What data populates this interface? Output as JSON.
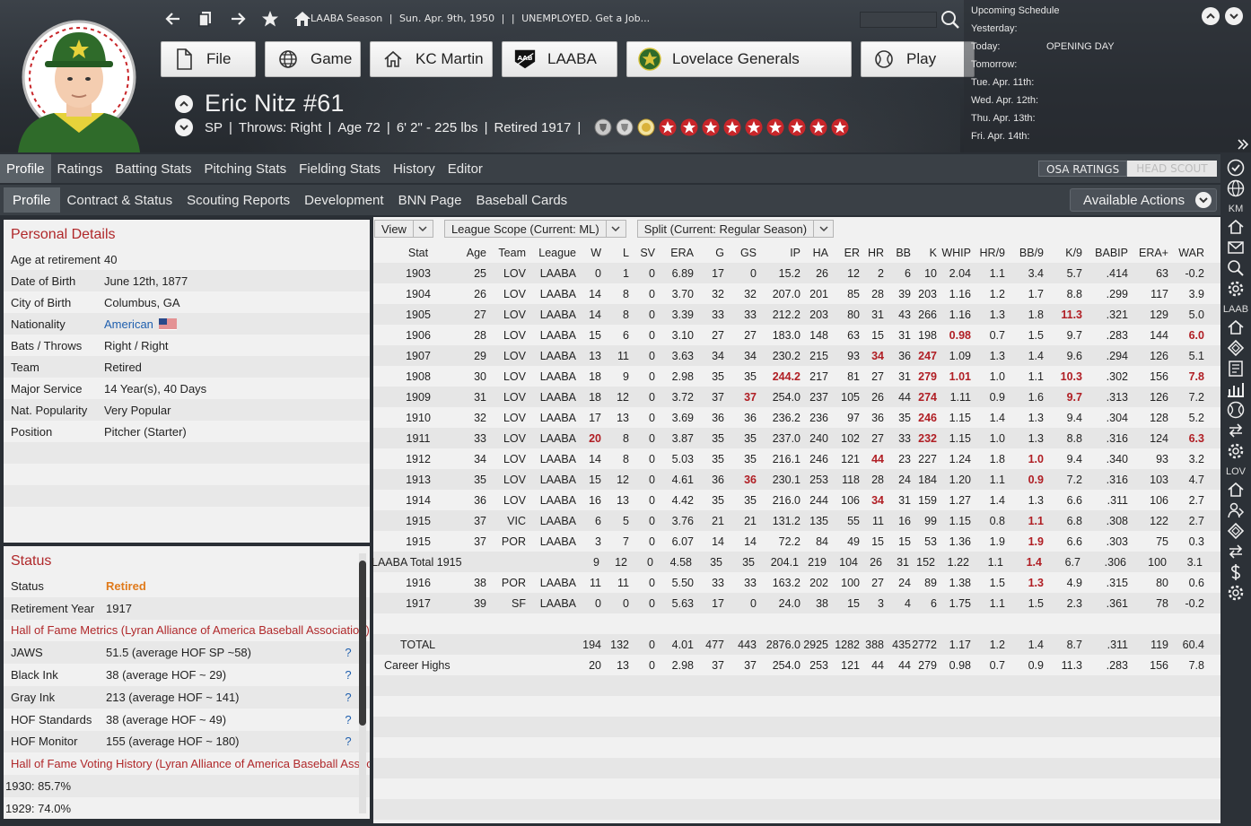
{
  "header": {
    "season": [
      "LAABA Season",
      "|",
      "Sun. Apr. 9th, 1950",
      "|",
      "|",
      "UNEMPLOYED. Get a Job..."
    ],
    "menu": [
      "File",
      "Game",
      "KC Martin",
      "LAABA",
      "Lovelace Generals",
      "Play"
    ],
    "player_name": "Eric Nitz  #61",
    "player_info": [
      "SP",
      "Throws: Right",
      "Age 72",
      "6' 2\" - 225 lbs",
      "Retired 1917"
    ]
  },
  "schedule": {
    "title": "Upcoming Schedule",
    "rows": [
      {
        "day": "Yesterday:",
        "game": ""
      },
      {
        "day": "Today:",
        "game": "OPENING DAY"
      },
      {
        "day": "Tomorrow:",
        "game": ""
      },
      {
        "day": "Tue. Apr. 11th:",
        "game": ""
      },
      {
        "day": "Wed. Apr. 12th:",
        "game": ""
      },
      {
        "day": "Thu. Apr. 13th:",
        "game": ""
      },
      {
        "day": "Fri. Apr. 14th:",
        "game": ""
      }
    ]
  },
  "tabs_main": [
    "Profile",
    "Ratings",
    "Batting Stats",
    "Pitching Stats",
    "Fielding Stats",
    "History",
    "Editor"
  ],
  "tabs_sub": [
    "Profile",
    "Contract & Status",
    "Scouting Reports",
    "Development",
    "BNN Page",
    "Baseball Cards"
  ],
  "osa": {
    "osa_label": "OSA RATINGS",
    "head_scout_label": "HEAD SCOUT"
  },
  "available_actions": "Available Actions",
  "sidebar": {
    "labels": [
      "KM",
      "LAAB",
      "LOV"
    ]
  },
  "personal": {
    "title": "Personal Details",
    "rows": [
      {
        "k": "Age at retirement",
        "v": "40"
      },
      {
        "k": "Date of Birth",
        "v": "June 12th, 1877"
      },
      {
        "k": "City of Birth",
        "v": "Columbus, GA"
      },
      {
        "k": "Nationality",
        "v": "American"
      },
      {
        "k": "Bats / Throws",
        "v": "Right / Right"
      },
      {
        "k": "Team",
        "v": "Retired"
      },
      {
        "k": "Major Service",
        "v": "14 Year(s), 40 Days"
      },
      {
        "k": "Nat. Popularity",
        "v": "Very Popular"
      },
      {
        "k": "Position",
        "v": "Pitcher (Starter)"
      },
      {
        "k": "",
        "v": ""
      },
      {
        "k": "",
        "v": ""
      },
      {
        "k": "",
        "v": ""
      },
      {
        "k": "",
        "v": ""
      }
    ]
  },
  "status": {
    "title": "Status",
    "status_label": "Status",
    "status_value": "Retired",
    "ret_label": "Retirement Year",
    "ret_value": "1917",
    "hof_metrics_title": "Hall of Fame Metrics (Lyran Alliance of America Baseball Association)",
    "metrics": [
      {
        "k": "JAWS",
        "v": "51.5 (average HOF SP ~58)"
      },
      {
        "k": "Black Ink",
        "v": "38 (average HOF ~ 29)"
      },
      {
        "k": "Gray Ink",
        "v": "213 (average HOF ~ 141)"
      },
      {
        "k": "HOF Standards",
        "v": "38 (average HOF ~ 49)"
      },
      {
        "k": "HOF Monitor",
        "v": "155 (average HOF ~ 180)"
      }
    ],
    "q": "?",
    "hof_voting_title": "Hall of Fame Voting History (Lyran Alliance of America Baseball Association)",
    "votes": [
      "1930: 85.7%",
      "1929: 74.0%"
    ]
  },
  "stats": {
    "filters": [
      "View",
      "League Scope  (Current: ML)",
      "Split  (Current: Regular Season)"
    ],
    "columns": [
      "Stat",
      "Age",
      "Team",
      "League",
      "W",
      "L",
      "SV",
      "ERA",
      "G",
      "GS",
      "IP",
      "HA",
      "ER",
      "HR",
      "BB",
      "K",
      "WHIP",
      "HR/9",
      "BB/9",
      "K/9",
      "BABIP",
      "ERA+",
      "WAR"
    ],
    "rows": [
      {
        "c": [
          "1903",
          "25",
          "LOV",
          "LAABA",
          "0",
          "1",
          "0",
          "6.89",
          "17",
          "0",
          "15.2",
          "26",
          "12",
          "2",
          "6",
          "10",
          "2.04",
          "1.1",
          "3.4",
          "5.7",
          ".414",
          "63",
          "-0.2"
        ],
        "r": []
      },
      {
        "c": [
          "1904",
          "26",
          "LOV",
          "LAABA",
          "14",
          "8",
          "0",
          "3.70",
          "32",
          "32",
          "207.0",
          "201",
          "85",
          "28",
          "39",
          "203",
          "1.16",
          "1.2",
          "1.7",
          "8.8",
          ".299",
          "117",
          "3.9"
        ],
        "r": []
      },
      {
        "c": [
          "1905",
          "27",
          "LOV",
          "LAABA",
          "14",
          "8",
          "0",
          "3.39",
          "33",
          "33",
          "212.2",
          "203",
          "80",
          "31",
          "43",
          "266",
          "1.16",
          "1.3",
          "1.8",
          "11.3",
          ".321",
          "129",
          "5.0"
        ],
        "r": [
          19
        ]
      },
      {
        "c": [
          "1906",
          "28",
          "LOV",
          "LAABA",
          "15",
          "6",
          "0",
          "3.10",
          "27",
          "27",
          "183.0",
          "148",
          "63",
          "15",
          "31",
          "198",
          "0.98",
          "0.7",
          "1.5",
          "9.7",
          ".283",
          "144",
          "6.0"
        ],
        "r": [
          16,
          22
        ]
      },
      {
        "c": [
          "1907",
          "29",
          "LOV",
          "LAABA",
          "13",
          "11",
          "0",
          "3.63",
          "34",
          "34",
          "230.2",
          "215",
          "93",
          "34",
          "36",
          "247",
          "1.09",
          "1.3",
          "1.4",
          "9.6",
          ".294",
          "126",
          "5.1"
        ],
        "r": [
          13,
          15
        ]
      },
      {
        "c": [
          "1908",
          "30",
          "LOV",
          "LAABA",
          "18",
          "9",
          "0",
          "2.98",
          "35",
          "35",
          "244.2",
          "217",
          "81",
          "27",
          "31",
          "279",
          "1.01",
          "1.0",
          "1.1",
          "10.3",
          ".302",
          "156",
          "7.8"
        ],
        "r": [
          10,
          15,
          16,
          19,
          22
        ]
      },
      {
        "c": [
          "1909",
          "31",
          "LOV",
          "LAABA",
          "18",
          "12",
          "0",
          "3.72",
          "37",
          "37",
          "254.0",
          "237",
          "105",
          "26",
          "44",
          "274",
          "1.11",
          "0.9",
          "1.6",
          "9.7",
          ".313",
          "126",
          "7.2"
        ],
        "r": [
          9,
          15,
          19
        ]
      },
      {
        "c": [
          "1910",
          "32",
          "LOV",
          "LAABA",
          "17",
          "13",
          "0",
          "3.69",
          "36",
          "36",
          "236.2",
          "236",
          "97",
          "36",
          "35",
          "246",
          "1.15",
          "1.4",
          "1.3",
          "9.4",
          ".304",
          "128",
          "5.2"
        ],
        "r": [
          15
        ]
      },
      {
        "c": [
          "1911",
          "33",
          "LOV",
          "LAABA",
          "20",
          "8",
          "0",
          "3.87",
          "35",
          "35",
          "237.0",
          "240",
          "102",
          "27",
          "33",
          "232",
          "1.15",
          "1.0",
          "1.3",
          "8.8",
          ".316",
          "124",
          "6.3"
        ],
        "r": [
          4,
          15,
          22
        ]
      },
      {
        "c": [
          "1912",
          "34",
          "LOV",
          "LAABA",
          "14",
          "8",
          "0",
          "5.03",
          "35",
          "35",
          "216.1",
          "246",
          "121",
          "44",
          "23",
          "227",
          "1.24",
          "1.8",
          "1.0",
          "9.4",
          ".340",
          "93",
          "3.2"
        ],
        "r": [
          13,
          18
        ]
      },
      {
        "c": [
          "1913",
          "35",
          "LOV",
          "LAABA",
          "15",
          "12",
          "0",
          "4.61",
          "36",
          "36",
          "230.1",
          "253",
          "118",
          "28",
          "24",
          "184",
          "1.20",
          "1.1",
          "0.9",
          "7.2",
          ".316",
          "103",
          "4.7"
        ],
        "r": [
          9,
          18
        ]
      },
      {
        "c": [
          "1914",
          "36",
          "LOV",
          "LAABA",
          "16",
          "13",
          "0",
          "4.42",
          "35",
          "35",
          "216.0",
          "244",
          "106",
          "34",
          "31",
          "159",
          "1.27",
          "1.4",
          "1.3",
          "6.6",
          ".311",
          "106",
          "2.7"
        ],
        "r": [
          13
        ]
      },
      {
        "c": [
          "1915",
          "37",
          "VIC",
          "LAABA",
          "6",
          "5",
          "0",
          "3.76",
          "21",
          "21",
          "131.2",
          "135",
          "55",
          "11",
          "16",
          "99",
          "1.15",
          "0.8",
          "1.1",
          "6.8",
          ".308",
          "122",
          "2.7"
        ],
        "r": [
          18
        ]
      },
      {
        "c": [
          "1915",
          "37",
          "POR",
          "LAABA",
          "3",
          "7",
          "0",
          "6.07",
          "14",
          "14",
          "72.2",
          "84",
          "49",
          "15",
          "15",
          "53",
          "1.36",
          "1.9",
          "1.9",
          "6.6",
          ".303",
          "75",
          "0.3"
        ],
        "r": [
          18
        ]
      },
      {
        "c": [
          "LAABA Total 1915",
          "",
          "",
          "",
          "9",
          "12",
          "0",
          "4.58",
          "35",
          "35",
          "204.1",
          "219",
          "104",
          "26",
          "31",
          "152",
          "1.22",
          "1.1",
          "1.4",
          "6.7",
          ".306",
          "100",
          "3.1"
        ],
        "r": [
          18
        ]
      },
      {
        "c": [
          "1916",
          "38",
          "POR",
          "LAABA",
          "11",
          "11",
          "0",
          "5.50",
          "33",
          "33",
          "163.2",
          "202",
          "100",
          "27",
          "24",
          "89",
          "1.38",
          "1.5",
          "1.3",
          "4.9",
          ".315",
          "80",
          "0.6"
        ],
        "r": [
          18
        ]
      },
      {
        "c": [
          "1917",
          "39",
          "SF",
          "LAABA",
          "0",
          "0",
          "0",
          "5.63",
          "17",
          "0",
          "24.0",
          "38",
          "15",
          "3",
          "4",
          "6",
          "1.75",
          "1.1",
          "1.5",
          "2.3",
          ".361",
          "78",
          "-0.2"
        ],
        "r": []
      },
      {
        "c": [
          "",
          "",
          "",
          "",
          "",
          "",
          "",
          "",
          "",
          "",
          "",
          "",
          "",
          "",
          "",
          "",
          "",
          "",
          "",
          "",
          "",
          "",
          ""
        ],
        "r": []
      },
      {
        "c": [
          "TOTAL",
          "",
          "",
          "",
          "194",
          "132",
          "0",
          "4.01",
          "477",
          "443",
          "2876.0",
          "2925",
          "1282",
          "388",
          "435",
          "2772",
          "1.17",
          "1.2",
          "1.4",
          "8.7",
          ".311",
          "119",
          "60.4"
        ],
        "r": []
      },
      {
        "c": [
          "Career Highs",
          "",
          "",
          "",
          "20",
          "13",
          "0",
          "2.98",
          "37",
          "37",
          "254.0",
          "253",
          "121",
          "44",
          "44",
          "279",
          "0.98",
          "0.7",
          "0.9",
          "11.3",
          ".283",
          "156",
          "7.8"
        ],
        "r": []
      }
    ]
  }
}
